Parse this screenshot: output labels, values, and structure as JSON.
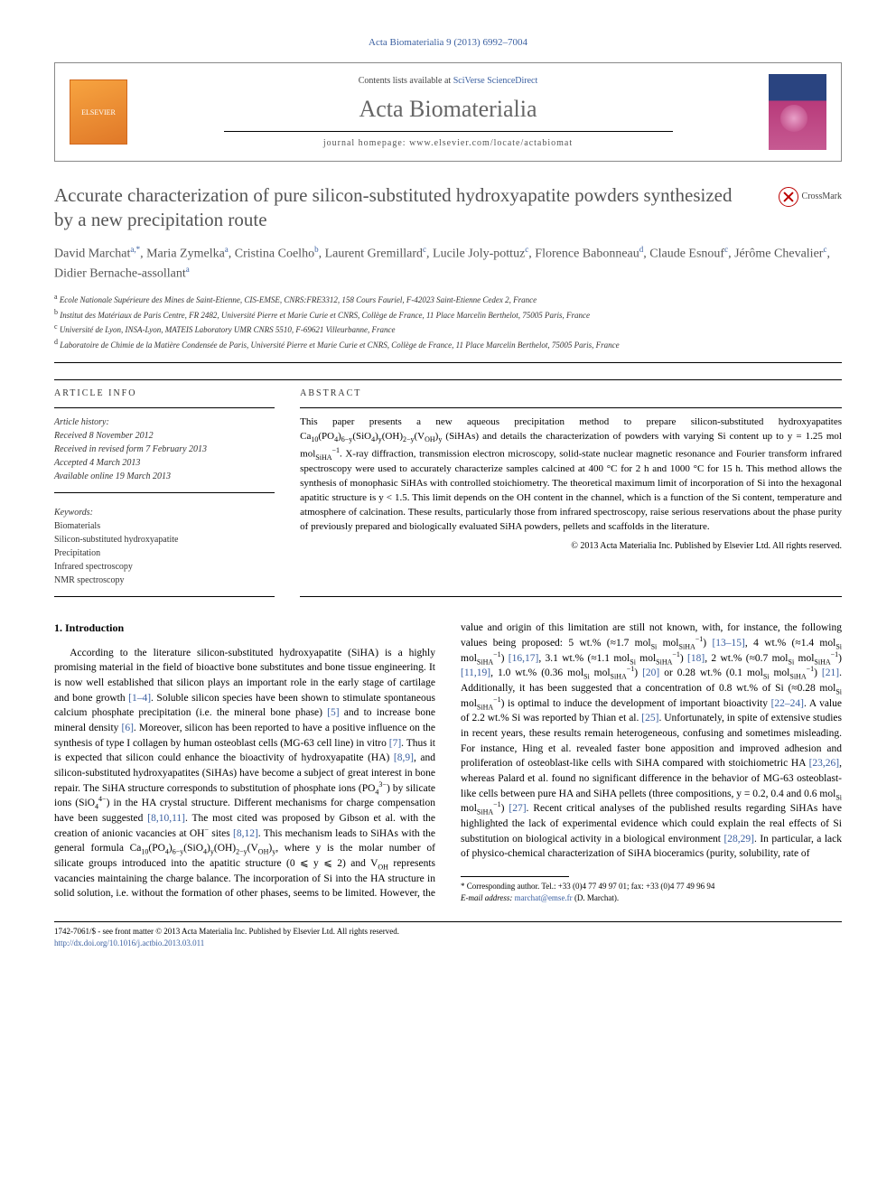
{
  "journal_ref": "Acta Biomaterialia 9 (2013) 6992–7004",
  "header": {
    "elsevier": "ELSEVIER",
    "contents_prefix": "Contents lists available at ",
    "contents_link": "SciVerse ScienceDirect",
    "journal_name": "Acta Biomaterialia",
    "homepage_label": "journal homepage: ",
    "homepage_url": "www.elsevier.com/locate/actabiomat"
  },
  "title": "Accurate characterization of pure silicon-substituted hydroxyapatite powders synthesized by a new precipitation route",
  "crossmark": "CrossMark",
  "authors_html": "David Marchat<sup>a,*</sup>, Maria Zymelka<sup>a</sup>, Cristina Coelho<sup>b</sup>, Laurent Gremillard<sup>c</sup>, Lucile Joly-pottuz<sup>c</sup>, Florence Babonneau<sup>d</sup>, Claude Esnouf<sup>c</sup>, Jérôme Chevalier<sup>c</sup>, Didier Bernache-assollant<sup>a</sup>",
  "affiliations": [
    "<sup>a</sup> Ecole Nationale Supérieure des Mines de Saint-Etienne, CIS-EMSE, CNRS:FRE3312, 158 Cours Fauriel, F-42023 Saint-Etienne Cedex 2, France",
    "<sup>b</sup> Institut des Matériaux de Paris Centre, FR 2482, Université Pierre et Marie Curie et CNRS, Collège de France, 11 Place Marcelin Berthelot, 75005 Paris, France",
    "<sup>c</sup> Université de Lyon, INSA-Lyon, MATEIS Laboratory UMR CNRS 5510, F-69621 Villeurbanne, France",
    "<sup>d</sup> Laboratoire de Chimie de la Matière Condensée de Paris, Université Pierre et Marie Curie et CNRS, Collège de France, 11 Place Marcelin Berthelot, 75005 Paris, France"
  ],
  "article_info": {
    "heading": "ARTICLE INFO",
    "history_label": "Article history:",
    "history": [
      "Received 8 November 2012",
      "Received in revised form 7 February 2013",
      "Accepted 4 March 2013",
      "Available online 19 March 2013"
    ],
    "keywords_label": "Keywords:",
    "keywords": [
      "Biomaterials",
      "Silicon-substituted hydroxyapatite",
      "Precipitation",
      "Infrared spectroscopy",
      "NMR spectroscopy"
    ]
  },
  "abstract": {
    "heading": "ABSTRACT",
    "text_html": "This paper presents a new aqueous precipitation method to prepare silicon-substituted hydroxyapatites Ca<sub>10</sub>(PO<sub>4</sub>)<sub>6−y</sub>(SiO<sub>4</sub>)<sub>y</sub>(OH)<sub>2−y</sub>(V<sub>OH</sub>)<sub>y</sub> (SiHAs) and details the characterization of powders with varying Si content up to y = 1.25 mol mol<sub>SiHA</sub><sup>−1</sup>. X-ray diffraction, transmission electron microscopy, solid-state nuclear magnetic resonance and Fourier transform infrared spectroscopy were used to accurately characterize samples calcined at 400 °C for 2 h and 1000 °C for 15 h. This method allows the synthesis of monophasic SiHAs with controlled stoichiometry. The theoretical maximum limit of incorporation of Si into the hexagonal apatitic structure is y &lt; 1.5. This limit depends on the OH content in the channel, which is a function of the Si content, temperature and atmosphere of calcination. These results, particularly those from infrared spectroscopy, raise serious reservations about the phase purity of previously prepared and biologically evaluated SiHA powders, pellets and scaffolds in the literature.",
    "copyright": "© 2013 Acta Materialia Inc. Published by Elsevier Ltd. All rights reserved."
  },
  "intro": {
    "heading": "1. Introduction",
    "para_html": "According to the literature silicon-substituted hydroxyapatite (SiHA) is a highly promising material in the field of bioactive bone substitutes and bone tissue engineering. It is now well established that silicon plays an important role in the early stage of cartilage and bone growth <a class='ref'>[1–4]</a>. Soluble silicon species have been shown to stimulate spontaneous calcium phosphate precipitation (i.e. the mineral bone phase) <a class='ref'>[5]</a> and to increase bone mineral density <a class='ref'>[6]</a>. Moreover, silicon has been reported to have a positive influence on the synthesis of type I collagen by human osteoblast cells (MG-63 cell line) in vitro <a class='ref'>[7]</a>. Thus it is expected that silicon could enhance the bioactivity of hydroxyapatite (HA) <a class='ref'>[8,9]</a>, and silicon-substituted hydroxyapatites (SiHAs) have become a subject of great interest in bone repair. The SiHA structure corresponds to substitution of phosphate ions (PO<sub>4</sub><sup>3−</sup>) by silicate ions (SiO<sub>4</sub><sup>4−</sup>) in the HA crystal structure. Different mechanisms for charge compensation have been suggested <a class='ref'>[8,10,11]</a>. The most cited was proposed by Gibson et al. with the creation of anionic vacancies at OH<sup>−</sup> sites <a class='ref'>[8,12]</a>. This mechanism leads to SiHAs with the general formula Ca<sub>10</sub>(PO<sub>4</sub>)<sub>6−y</sub>(SiO<sub>4</sub>)<sub>y</sub>(OH)<sub>2−y</sub>(V<sub>OH</sub>)<sub>y</sub>, where y is the molar number of silicate groups introduced into the apatitic structure (0 ⩽ y ⩽ 2) and V<sub>OH</sub> represents vacancies maintaining the charge balance. The incorporation of Si into the HA structure in solid solution, i.e. without the formation of other phases, seems to be limited. However, the value and origin of this limitation are still not known, with, for instance, the following values being proposed: 5 wt.% (≈1.7 mol<sub>Si</sub> mol<sub>SiHA</sub><sup>−1</sup>) <a class='ref'>[13–15]</a>, 4 wt.% (≈1.4 mol<sub>Si</sub> mol<sub>SiHA</sub><sup>−1</sup>) <a class='ref'>[16,17]</a>, 3.1 wt.% (≈1.1 mol<sub>Si</sub> mol<sub>SiHA</sub><sup>−1</sup>) <a class='ref'>[18]</a>, 2 wt.% (≈0.7 mol<sub>Si</sub> mol<sub>SiHA</sub><sup>−1</sup>) <a class='ref'>[11,19]</a>, 1.0 wt.% (0.36 mol<sub>Si</sub> mol<sub>SiHA</sub><sup>−1</sup>) <a class='ref'>[20]</a> or 0.28 wt.% (0.1 mol<sub>Si</sub> mol<sub>SiHA</sub><sup>−1</sup>) <a class='ref'>[21]</a>. Additionally, it has been suggested that a concentration of 0.8 wt.% of Si (≈0.28 mol<sub>Si</sub> mol<sub>SiHA</sub><sup>−1</sup>) is optimal to induce the development of important bioactivity <a class='ref'>[22–24]</a>. A value of 2.2 wt.% Si was reported by Thian et al. <a class='ref'>[25]</a>. Unfortunately, in spite of extensive studies in recent years, these results remain heterogeneous, confusing and sometimes misleading. For instance, Hing et al. revealed faster bone apposition and improved adhesion and proliferation of osteoblast-like cells with SiHA compared with stoichiometric HA <a class='ref'>[23,26]</a>, whereas Palard et al. found no significant difference in the behavior of MG-63 osteoblast-like cells between pure HA and SiHA pellets (three compositions, y = 0.2, 0.4 and 0.6 mol<sub>Si</sub> mol<sub>SiHA</sub><sup>−1</sup>) <a class='ref'>[27]</a>. Recent critical analyses of the published results regarding SiHAs have highlighted the lack of experimental evidence which could explain the real effects of Si substitution on biological activity in a biological environment <a class='ref'>[28,29]</a>. In particular, a lack of physico-chemical characterization of SiHA bioceramics (purity, solubility, rate of"
  },
  "footnote": {
    "corr": "* Corresponding author. Tel.: +33 (0)4 77 49 97 01; fax: +33 (0)4 77 49 96 94",
    "email_label": "E-mail address:",
    "email": "marchat@emse.fr",
    "email_name": "(D. Marchat)."
  },
  "footer": {
    "line1": "1742-7061/$ - see front matter © 2013 Acta Materialia Inc. Published by Elsevier Ltd. All rights reserved.",
    "doi": "http://dx.doi.org/10.1016/j.actbio.2013.03.011"
  },
  "colors": {
    "link": "#3a5fa0",
    "title_gray": "#555555",
    "rule": "#000000"
  }
}
